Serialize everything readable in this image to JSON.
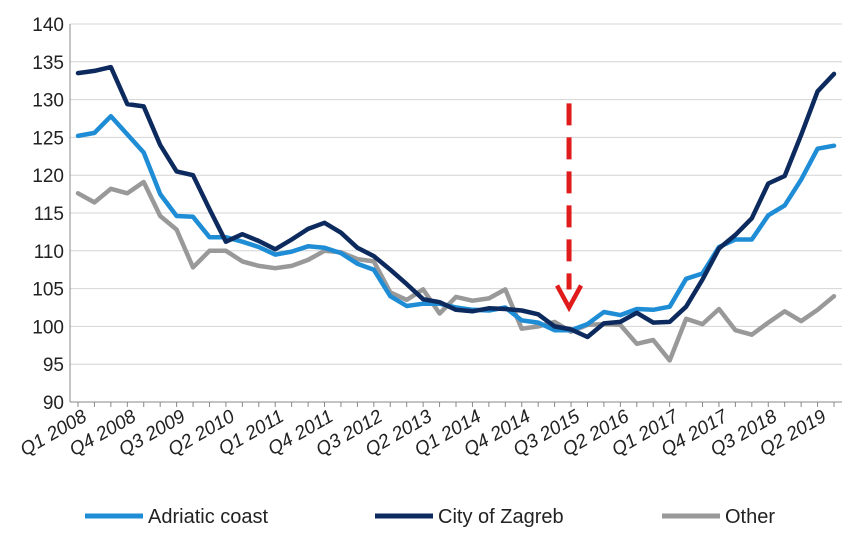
{
  "chart_data": {
    "type": "line",
    "title": "",
    "xlabel": "",
    "ylabel": "",
    "ylim": [
      90,
      140
    ],
    "y_ticks": [
      90,
      95,
      100,
      105,
      110,
      115,
      120,
      125,
      130,
      135,
      140
    ],
    "x_tick_labels": [
      "Q1 2008",
      "Q4 2008",
      "Q3 2009",
      "Q2 2010",
      "Q1 2011",
      "Q4 2011",
      "Q3 2012",
      "Q2 2013",
      "Q1 2014",
      "Q4 2014",
      "Q3 2015",
      "Q2 2016",
      "Q1 2017",
      "Q4 2017",
      "Q3 2018",
      "Q2 2019"
    ],
    "x": [
      "Q1 2008",
      "Q2 2008",
      "Q3 2008",
      "Q4 2008",
      "Q1 2009",
      "Q2 2009",
      "Q3 2009",
      "Q4 2009",
      "Q1 2010",
      "Q2 2010",
      "Q3 2010",
      "Q4 2010",
      "Q1 2011",
      "Q2 2011",
      "Q3 2011",
      "Q4 2011",
      "Q1 2012",
      "Q2 2012",
      "Q3 2012",
      "Q4 2012",
      "Q1 2013",
      "Q2 2013",
      "Q3 2013",
      "Q4 2013",
      "Q1 2014",
      "Q2 2014",
      "Q3 2014",
      "Q4 2014",
      "Q1 2015",
      "Q2 2015",
      "Q3 2015",
      "Q4 2015",
      "Q1 2016",
      "Q2 2016",
      "Q3 2016",
      "Q4 2016",
      "Q1 2017",
      "Q2 2017",
      "Q3 2017",
      "Q4 2017",
      "Q1 2018",
      "Q2 2018",
      "Q3 2018",
      "Q4 2018",
      "Q1 2019",
      "Q2 2019",
      "Q3 2019"
    ],
    "series": [
      {
        "name": "Adriatic coast",
        "color": "#1f8dd6",
        "values": [
          125.2,
          125.6,
          127.8,
          125.4,
          123.0,
          117.5,
          114.6,
          114.5,
          111.8,
          111.8,
          111.2,
          110.5,
          109.5,
          109.9,
          110.6,
          110.4,
          109.7,
          108.3,
          107.5,
          104.0,
          102.7,
          103.0,
          103.0,
          102.5,
          102.2,
          102.1,
          102.5,
          100.8,
          100.5,
          99.5,
          99.5,
          100.3,
          101.9,
          101.5,
          102.3,
          102.2,
          102.6,
          106.3,
          107.0,
          110.5,
          111.5,
          111.5,
          114.7,
          116.0,
          119.4,
          123.5,
          123.9
        ]
      },
      {
        "name": "City of Zagreb",
        "color": "#0d2a5e",
        "values": [
          133.5,
          133.8,
          134.3,
          129.4,
          129.1,
          124.0,
          120.5,
          120.0,
          115.5,
          111.2,
          112.2,
          111.3,
          110.2,
          111.5,
          112.9,
          113.7,
          112.4,
          110.4,
          109.3,
          107.5,
          105.6,
          103.6,
          103.2,
          102.2,
          102.0,
          102.4,
          102.3,
          102.1,
          101.6,
          100.0,
          99.6,
          98.6,
          100.4,
          100.6,
          101.8,
          100.5,
          100.6,
          102.6,
          106.2,
          110.3,
          112.1,
          114.3,
          118.9,
          119.9,
          125.3,
          131.1,
          133.4
        ]
      },
      {
        "name": "Other",
        "color": "#999999",
        "values": [
          117.6,
          116.4,
          118.2,
          117.6,
          119.1,
          114.6,
          112.8,
          107.8,
          110.0,
          110.0,
          108.6,
          108.0,
          107.7,
          108.0,
          108.8,
          110.0,
          109.8,
          108.9,
          108.6,
          104.5,
          103.5,
          104.9,
          101.7,
          103.9,
          103.4,
          103.7,
          104.9,
          99.7,
          100.0,
          100.6,
          99.3,
          100.2,
          100.3,
          100.2,
          97.7,
          98.2,
          95.5,
          101.0,
          100.3,
          102.3,
          99.5,
          98.9,
          100.5,
          102.0,
          100.7,
          102.2,
          104.0
        ]
      }
    ],
    "annotation": {
      "type": "arrow",
      "color": "#e01b1b",
      "x_category": "Q3 2015",
      "y_from": 129.5,
      "y_to": 102.5
    },
    "grid": {
      "horizontal": true,
      "vertical": false
    },
    "legend": {
      "placement": "bottom"
    }
  }
}
